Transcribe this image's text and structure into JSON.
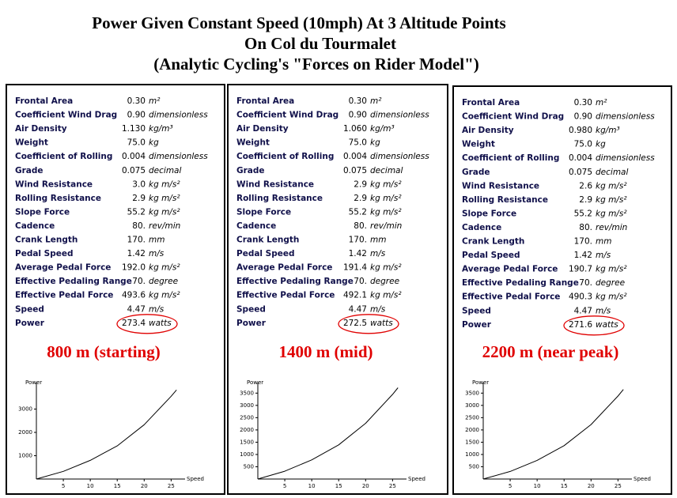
{
  "title": [
    "Power Given Constant Speed (10mph) At 3 Altitude Points",
    "On Col du Tourmalet",
    "(Analytic Cycling's \"Forces on Rider Model\")"
  ],
  "panels": [
    {
      "rows": [
        {
          "label": "Frontal Area",
          "value": "0.30",
          "unit": "m²"
        },
        {
          "label": "Coefficient Wind Drag",
          "value": "0.90",
          "unit": "dimensionless"
        },
        {
          "label": "Air Density",
          "value": "1.130",
          "unit": "kg/m³"
        },
        {
          "label": "Weight",
          "value": "75.0",
          "unit": "kg"
        },
        {
          "label": "Coefficient of Rolling",
          "value": "0.004",
          "unit": "dimensionless"
        },
        {
          "label": "Grade",
          "value": "0.075",
          "unit": "decimal"
        },
        {
          "label": "Wind Resistance",
          "value": "3.0",
          "unit": "kg m/s²"
        },
        {
          "label": "Rolling Resistance",
          "value": "2.9",
          "unit": "kg m/s²"
        },
        {
          "label": "Slope Force",
          "value": "55.2",
          "unit": "kg m/s²"
        },
        {
          "label": "Cadence",
          "value": "80.",
          "unit": "rev/min"
        },
        {
          "label": "Crank Length",
          "value": "170.",
          "unit": "mm"
        },
        {
          "label": "Pedal Speed",
          "value": "1.42",
          "unit": "m/s"
        },
        {
          "label": "Average Pedal Force",
          "value": "192.0",
          "unit": "kg m/s²"
        },
        {
          "label": "Effective Pedaling Range",
          "value": "70.",
          "unit": "degree"
        },
        {
          "label": "Effective Pedal Force",
          "value": "493.6",
          "unit": "kg m/s²"
        },
        {
          "label": "Speed",
          "value": "4.47",
          "unit": "m/s"
        },
        {
          "label": "Power",
          "value": "273.4",
          "unit": "watts"
        }
      ],
      "annotation": "800 m (starting)",
      "chart": {
        "type": "line",
        "xlabel": "Speed",
        "ylabel": "Power",
        "x": [
          0,
          5,
          10,
          15,
          20,
          25,
          26
        ],
        "values": [
          0,
          330,
          800,
          1420,
          2330,
          3550,
          3820
        ],
        "color": "#000000",
        "xlim": [
          0,
          27
        ],
        "ylim": [
          0,
          4000
        ],
        "xticks": [
          5,
          10,
          15,
          20,
          25
        ],
        "yticks": [
          1000,
          2000,
          3000
        ]
      }
    },
    {
      "rows": [
        {
          "label": "Frontal Area",
          "value": "0.30",
          "unit": "m²"
        },
        {
          "label": "Coefficient Wind Drag",
          "value": "0.90",
          "unit": "dimensionless"
        },
        {
          "label": "Air Density",
          "value": "1.060",
          "unit": "kg/m³"
        },
        {
          "label": "Weight",
          "value": "75.0",
          "unit": "kg"
        },
        {
          "label": "Coefficient of Rolling",
          "value": "0.004",
          "unit": "dimensionless"
        },
        {
          "label": "Grade",
          "value": "0.075",
          "unit": "decimal"
        },
        {
          "label": "Wind Resistance",
          "value": "2.9",
          "unit": "kg m/s²"
        },
        {
          "label": "Rolling Resistance",
          "value": "2.9",
          "unit": "kg m/s²"
        },
        {
          "label": "Slope Force",
          "value": "55.2",
          "unit": "kg m/s²"
        },
        {
          "label": "Cadence",
          "value": "80.",
          "unit": "rev/min"
        },
        {
          "label": "Crank Length",
          "value": "170.",
          "unit": "mm"
        },
        {
          "label": "Pedal Speed",
          "value": "1.42",
          "unit": "m/s"
        },
        {
          "label": "Average Pedal Force",
          "value": "191.4",
          "unit": "kg m/s²"
        },
        {
          "label": "Effective Pedaling Range",
          "value": "70.",
          "unit": "degree"
        },
        {
          "label": "Effective Pedal Force",
          "value": "492.1",
          "unit": "kg m/s²"
        },
        {
          "label": "Speed",
          "value": "4.47",
          "unit": "m/s"
        },
        {
          "label": "Power",
          "value": "272.5",
          "unit": "watts"
        }
      ],
      "annotation": "1400 m (mid)",
      "chart": {
        "type": "line",
        "xlabel": "Speed",
        "ylabel": "Power",
        "x": [
          0,
          5,
          10,
          15,
          20,
          25,
          26
        ],
        "values": [
          0,
          320,
          780,
          1390,
          2270,
          3450,
          3720
        ],
        "color": "#000000",
        "xlim": [
          0,
          27
        ],
        "ylim": [
          0,
          3800
        ],
        "xticks": [
          5,
          10,
          15,
          20,
          25
        ],
        "yticks": [
          500,
          1000,
          1500,
          2000,
          2500,
          3000,
          3500
        ]
      }
    },
    {
      "rows": [
        {
          "label": "Frontal Area",
          "value": "0.30",
          "unit": "m²"
        },
        {
          "label": "Coefficient Wind Drag",
          "value": "0.90",
          "unit": "dimensionless"
        },
        {
          "label": "Air Density",
          "value": "0.980",
          "unit": "kg/m³"
        },
        {
          "label": "Weight",
          "value": "75.0",
          "unit": "kg"
        },
        {
          "label": "Coefficient of Rolling",
          "value": "0.004",
          "unit": "dimensionless"
        },
        {
          "label": "Grade",
          "value": "0.075",
          "unit": "decimal"
        },
        {
          "label": "Wind Resistance",
          "value": "2.6",
          "unit": "kg m/s²"
        },
        {
          "label": "Rolling Resistance",
          "value": "2.9",
          "unit": "kg m/s²"
        },
        {
          "label": "Slope Force",
          "value": "55.2",
          "unit": "kg m/s²"
        },
        {
          "label": "Cadence",
          "value": "80.",
          "unit": "rev/min"
        },
        {
          "label": "Crank Length",
          "value": "170.",
          "unit": "mm"
        },
        {
          "label": "Pedal Speed",
          "value": "1.42",
          "unit": "m/s"
        },
        {
          "label": "Average Pedal Force",
          "value": "190.7",
          "unit": "kg m/s²"
        },
        {
          "label": "Effective Pedaling Range",
          "value": "70.",
          "unit": "degree"
        },
        {
          "label": "Effective Pedal Force",
          "value": "490.3",
          "unit": "kg m/s²"
        },
        {
          "label": "Speed",
          "value": "4.47",
          "unit": "m/s"
        },
        {
          "label": "Power",
          "value": "271.6",
          "unit": "watts"
        }
      ],
      "annotation": "2200 m (near peak)",
      "chart": {
        "type": "line",
        "xlabel": "Speed",
        "ylabel": "Power",
        "x": [
          0,
          5,
          10,
          15,
          20,
          25,
          26
        ],
        "values": [
          0,
          310,
          760,
          1360,
          2220,
          3380,
          3650
        ],
        "color": "#000000",
        "xlim": [
          0,
          27
        ],
        "ylim": [
          0,
          3800
        ],
        "xticks": [
          5,
          10,
          15,
          20,
          25
        ],
        "yticks": [
          500,
          1000,
          1500,
          2000,
          2500,
          3000,
          3500
        ]
      }
    }
  ]
}
